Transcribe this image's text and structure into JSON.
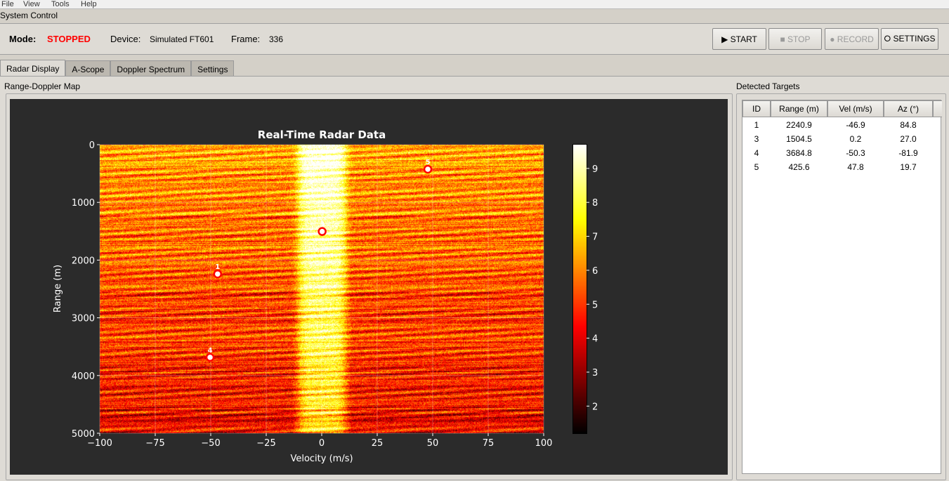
{
  "menu": [
    "File",
    "View",
    "Tools",
    "Help"
  ],
  "system_control": {
    "title": "System Control",
    "mode_label": "Mode:",
    "mode_value": "STOPPED",
    "device_label": "Device:",
    "device_value": "Simulated FT601",
    "frame_label": "Frame:",
    "frame_value": "336",
    "buttons": {
      "start": "▶ START",
      "stop": "■ STOP",
      "record": "● RECORD",
      "settings": "⭘ SETTINGS"
    }
  },
  "tabs": [
    {
      "label": "Radar Display",
      "active": true
    },
    {
      "label": "A-Scope"
    },
    {
      "label": "Doppler Spectrum"
    },
    {
      "label": "Settings"
    }
  ],
  "map_group": {
    "title": "Range-Doppler Map"
  },
  "targets_group": {
    "title": "Detected Targets",
    "columns": [
      "ID",
      "Range (m)",
      "Vel (m/s)",
      "Az (°)"
    ],
    "rows": [
      [
        "1",
        "2240.9",
        "-46.9",
        "84.8"
      ],
      [
        "3",
        "1504.5",
        "0.2",
        "27.0"
      ],
      [
        "4",
        "3684.8",
        "-50.3",
        "-81.9"
      ],
      [
        "5",
        "425.6",
        "47.8",
        "19.7"
      ]
    ]
  },
  "chart_data": {
    "type": "heatmap",
    "title": "Real-Time Radar Data",
    "xlabel": "Velocity (m/s)",
    "ylabel": "Range (m)",
    "xlim": [
      -100,
      100
    ],
    "ylim": [
      5000,
      0
    ],
    "xticks": [
      "−100",
      "−75",
      "−50",
      "−25",
      "0",
      "25",
      "50",
      "75",
      "100"
    ],
    "xtick_values": [
      -100,
      -75,
      -50,
      -25,
      0,
      25,
      50,
      75,
      100
    ],
    "yticks": [
      "0",
      "1000",
      "2000",
      "3000",
      "4000",
      "5000"
    ],
    "ytick_values": [
      0,
      1000,
      2000,
      3000,
      4000,
      5000
    ],
    "colorbar": {
      "range": [
        1.2,
        9.7
      ],
      "ticks": [
        "2",
        "3",
        "4",
        "5",
        "6",
        "7",
        "8",
        "9"
      ],
      "tick_values": [
        2,
        3,
        4,
        5,
        6,
        7,
        8,
        9
      ],
      "colormap": "hot"
    },
    "grid": true,
    "targets": [
      {
        "id": "1",
        "velocity": -46.9,
        "range": 2240.9
      },
      {
        "id": "3",
        "velocity": 0.2,
        "range": 1504.5
      },
      {
        "id": "4",
        "velocity": -50.3,
        "range": 3684.8
      },
      {
        "id": "5",
        "velocity": 47.8,
        "range": 425.6
      }
    ],
    "marker_color": "#ff0000"
  }
}
